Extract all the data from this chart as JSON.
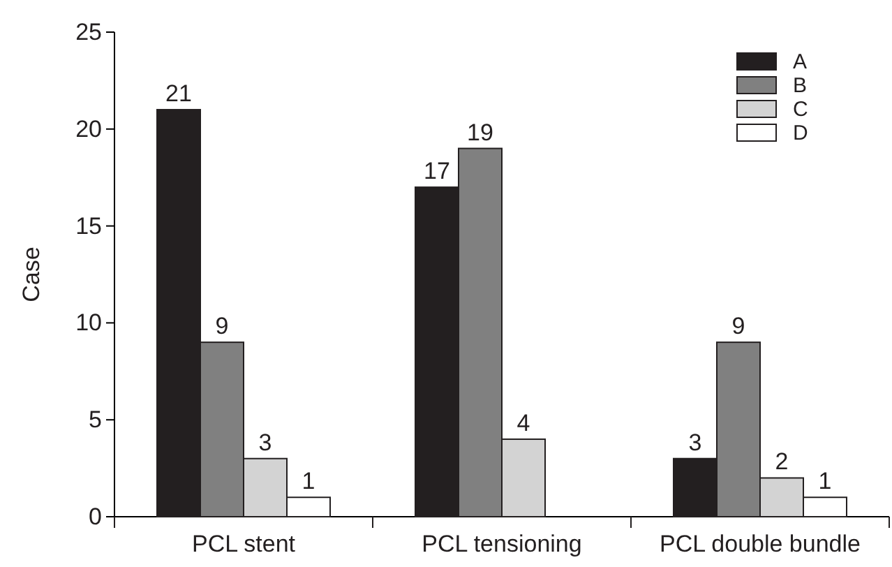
{
  "chart_data": {
    "type": "bar",
    "ylabel": "Case",
    "categories": [
      "PCL stent",
      "PCL tensioning",
      "PCL double bundle"
    ],
    "series": [
      {
        "name": "A",
        "color": "#231f20",
        "values": [
          21,
          17,
          3
        ]
      },
      {
        "name": "B",
        "color": "#808080",
        "values": [
          9,
          19,
          9
        ]
      },
      {
        "name": "C",
        "color": "#d3d3d3",
        "values": [
          3,
          4,
          2
        ]
      },
      {
        "name": "D",
        "color": "#ffffff",
        "values": [
          1,
          null,
          1
        ]
      }
    ],
    "ylim": [
      0,
      25
    ],
    "yticks": [
      0,
      5,
      10,
      15,
      20,
      25
    ],
    "data_labels": true,
    "legend": "top right",
    "grid": false
  }
}
